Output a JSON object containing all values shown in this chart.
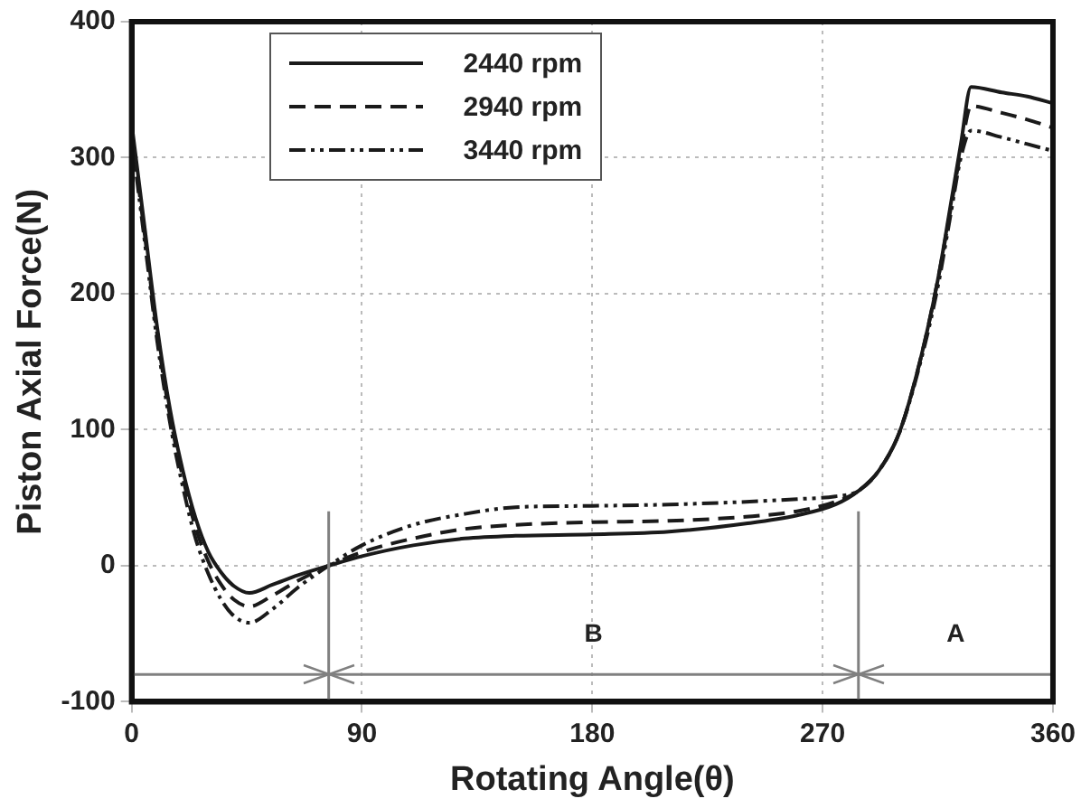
{
  "chart_data": {
    "type": "line",
    "xlabel": "Rotating Angle(θ)",
    "ylabel": "Piston Axial Force(N)",
    "xlim": [
      0,
      360
    ],
    "xticks": [
      0,
      90,
      180,
      270,
      360
    ],
    "ylim": [
      -100,
      400
    ],
    "yticks": [
      -100,
      0,
      100,
      200,
      300,
      400
    ],
    "grid": true,
    "legend": "top",
    "marker": "none",
    "x": [
      0,
      5,
      10,
      15,
      20,
      25,
      30,
      35,
      40,
      46,
      55,
      65,
      77,
      90,
      110,
      130,
      150,
      180,
      210,
      240,
      260,
      275,
      284,
      292,
      300,
      308,
      315,
      320,
      324,
      328,
      340,
      350,
      360
    ],
    "series": [
      {
        "name": "2440 rpm",
        "color": "#1a1a1a",
        "line_style": "solid",
        "values": [
          325,
          250,
          175,
          115,
          70,
          35,
          10,
          -5,
          -15,
          -20,
          -14,
          -7,
          0,
          7,
          15,
          20,
          22,
          23,
          25,
          31,
          37,
          45,
          55,
          70,
          98,
          150,
          210,
          265,
          310,
          352,
          348,
          345,
          340
        ]
      },
      {
        "name": "2940 rpm",
        "color": "#1a1a1a",
        "line_style": "dashed",
        "values": [
          320,
          245,
          170,
          110,
          65,
          28,
          3,
          -14,
          -25,
          -30,
          -22,
          -11,
          0,
          10,
          20,
          27,
          30,
          32,
          33,
          36,
          40,
          47,
          55,
          70,
          98,
          150,
          210,
          262,
          305,
          338,
          333,
          328,
          322
        ]
      },
      {
        "name": "3440 rpm",
        "color": "#1a1a1a",
        "line_style": "dashdot",
        "values": [
          315,
          240,
          165,
          105,
          58,
          20,
          -6,
          -25,
          -37,
          -42,
          -32,
          -16,
          0,
          15,
          30,
          38,
          43,
          44,
          45,
          47,
          49,
          51,
          55,
          70,
          98,
          148,
          205,
          258,
          300,
          320,
          315,
          310,
          305
        ]
      }
    ],
    "ref_lines": [
      {
        "axis": "x",
        "value": 77,
        "color": "#808080"
      },
      {
        "axis": "x",
        "value": 284,
        "color": "#808080"
      },
      {
        "axis": "y",
        "value": -80,
        "color": "#808080"
      }
    ],
    "annotations": [
      "B",
      "A"
    ]
  }
}
